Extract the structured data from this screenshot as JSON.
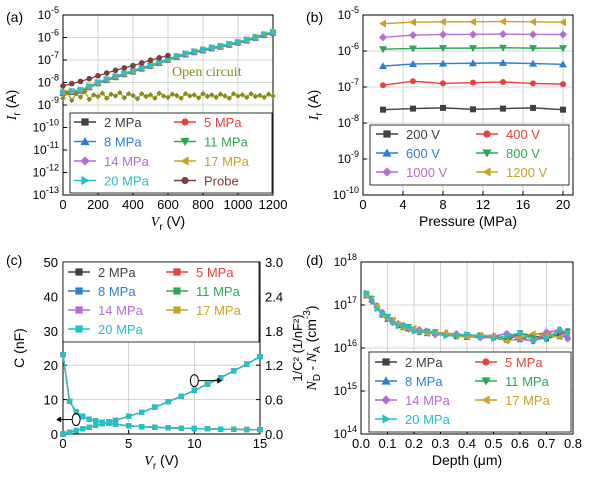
{
  "chart_data": [
    {
      "panel": "(a)",
      "type": "scatter",
      "xlabel": "V",
      "xlabel_sub": "r",
      "xunit": "(V)",
      "ylabel": "I",
      "ylabel_sub": "r",
      "yunit": "(A)",
      "xlim": [
        0,
        1200
      ],
      "xticks": [
        0,
        200,
        400,
        600,
        800,
        1000,
        1200
      ],
      "ylim": [
        -13,
        -5
      ],
      "yscale": "log",
      "ytick_exponents": [
        -13,
        -12,
        -11,
        -10,
        -9,
        -8,
        -7,
        -6,
        -5
      ],
      "grid": true,
      "annotation": "Open circuit",
      "legend": [
        {
          "name": "2 MPa",
          "color": "#404040",
          "marker": "square"
        },
        {
          "name": "5 MPa",
          "color": "#e8413c",
          "marker": "circle"
        },
        {
          "name": "8 MPa",
          "color": "#2a7fd4",
          "marker": "triangle-up"
        },
        {
          "name": "11 MPa",
          "color": "#2aa856",
          "marker": "triangle-down"
        },
        {
          "name": "14 MPa",
          "color": "#b86ad9",
          "marker": "diamond"
        },
        {
          "name": "17 MPa",
          "color": "#c9a227",
          "marker": "triangle-left"
        },
        {
          "name": "20 MPa",
          "color": "#1fc3c9",
          "marker": "triangle-right"
        },
        {
          "name": "Probe",
          "color": "#7a3e3e",
          "marker": "circle"
        }
      ],
      "series": [
        {
          "name": "2 MPa",
          "x": [
            0,
            50,
            100,
            150,
            200,
            250,
            300,
            350,
            400,
            450,
            500,
            550,
            600,
            650,
            700,
            750,
            800,
            850,
            900,
            950,
            1000,
            1050,
            1100,
            1150,
            1200
          ],
          "log10_y": [
            -8.46,
            -8.41,
            -8.35,
            -8.2,
            -8.02,
            -7.88,
            -7.75,
            -7.62,
            -7.5,
            -7.37,
            -7.25,
            -7.12,
            -6.98,
            -6.85,
            -6.74,
            -6.64,
            -6.56,
            -6.47,
            -6.4,
            -6.31,
            -6.22,
            -6.12,
            -6.0,
            -5.88,
            -5.78
          ]
        },
        {
          "name": "Probe",
          "x": [
            0,
            50,
            100,
            150,
            200,
            250,
            300,
            350,
            400,
            450,
            500,
            550,
            600
          ],
          "log10_y": [
            -8.15,
            -8.05,
            -7.95,
            -7.83,
            -7.7,
            -7.58,
            -7.46,
            -7.35,
            -7.25,
            -7.13,
            -7.01,
            -6.9,
            -6.8
          ]
        },
        {
          "name": "Open circuit",
          "x": [
            0,
            25,
            50,
            75,
            100,
            125,
            150,
            175,
            200,
            225,
            250,
            275,
            300,
            325,
            350,
            375,
            400,
            425,
            450,
            475,
            500,
            525,
            550,
            575,
            600,
            625,
            650,
            675,
            700,
            725,
            750,
            775,
            800,
            825,
            850,
            875,
            900,
            925,
            950,
            975,
            1000,
            1025,
            1050,
            1075,
            1100,
            1125,
            1150,
            1175,
            1200
          ],
          "log10_y": [
            -8.7,
            -8.45,
            -8.8,
            -8.5,
            -8.65,
            -8.4,
            -8.75,
            -8.55,
            -8.62,
            -8.48,
            -8.7,
            -8.52,
            -8.6,
            -8.45,
            -8.68,
            -8.5,
            -8.58,
            -8.72,
            -8.5,
            -8.62,
            -8.55,
            -8.7,
            -8.48,
            -8.6,
            -8.66,
            -8.52,
            -8.58,
            -8.7,
            -8.5,
            -8.6,
            -8.55,
            -8.68,
            -8.5,
            -8.62,
            -8.55,
            -8.66,
            -8.52,
            -8.6,
            -8.7,
            -8.5,
            -8.6,
            -8.55,
            -8.66,
            -8.5,
            -8.62,
            -8.57,
            -8.66,
            -8.52,
            -8.6
          ]
        }
      ]
    },
    {
      "panel": "(b)",
      "type": "line",
      "xlabel": "Pressure (MPa)",
      "ylabel": "I",
      "ylabel_sub": "r",
      "yunit": "(A)",
      "xlim": [
        0,
        21
      ],
      "xticks": [
        0,
        4,
        8,
        12,
        16,
        20
      ],
      "ylim": [
        -10,
        -5
      ],
      "yscale": "log",
      "ytick_exponents": [
        -10,
        -9,
        -8,
        -7,
        -6,
        -5
      ],
      "grid": true,
      "x": [
        2,
        5,
        8,
        11,
        14,
        17,
        20
      ],
      "legend": [
        {
          "name": "200 V",
          "color": "#404040",
          "marker": "square"
        },
        {
          "name": "400 V",
          "color": "#e8413c",
          "marker": "circle"
        },
        {
          "name": "600 V",
          "color": "#2a7fd4",
          "marker": "triangle-up"
        },
        {
          "name": "800 V",
          "color": "#2aa856",
          "marker": "triangle-down"
        },
        {
          "name": "1000 V",
          "color": "#b86ad9",
          "marker": "diamond"
        },
        {
          "name": "1200 V",
          "color": "#c9a227",
          "marker": "triangle-left"
        }
      ],
      "series": [
        {
          "name": "200 V",
          "log10_y": [
            -7.63,
            -7.6,
            -7.58,
            -7.62,
            -7.6,
            -7.58,
            -7.63
          ]
        },
        {
          "name": "400 V",
          "log10_y": [
            -6.95,
            -6.84,
            -6.9,
            -6.88,
            -6.86,
            -6.9,
            -6.92
          ]
        },
        {
          "name": "600 V",
          "log10_y": [
            -6.42,
            -6.36,
            -6.35,
            -6.34,
            -6.33,
            -6.35,
            -6.37
          ]
        },
        {
          "name": "800 V",
          "log10_y": [
            -5.95,
            -5.93,
            -5.92,
            -5.92,
            -5.91,
            -5.92,
            -5.92
          ]
        },
        {
          "name": "1000 V",
          "log10_y": [
            -5.62,
            -5.56,
            -5.54,
            -5.54,
            -5.53,
            -5.54,
            -5.54
          ]
        },
        {
          "name": "1200 V",
          "log10_y": [
            -5.24,
            -5.2,
            -5.19,
            -5.19,
            -5.18,
            -5.19,
            -5.2
          ]
        }
      ]
    },
    {
      "panel": "(c)",
      "type": "scatter",
      "xlabel": "V",
      "xlabel_sub": "r",
      "xunit": "(V)",
      "ylabel": "C (nF)",
      "y2label": "1/C² (1/nF²)",
      "xlim": [
        0,
        15
      ],
      "xticks": [
        0,
        5,
        10,
        15
      ],
      "ylim": [
        0,
        50
      ],
      "yticks": [
        0,
        10,
        20,
        30,
        40,
        50
      ],
      "y2lim": [
        0,
        3.0
      ],
      "y2ticks": [
        "0.0",
        "0.6",
        "1.2",
        "1.8",
        "2.4",
        "3.0"
      ],
      "grid": true,
      "legend": [
        {
          "name": "2 MPa",
          "color": "#404040",
          "marker": "square"
        },
        {
          "name": "5 MPa",
          "color": "#e8413c",
          "marker": "square"
        },
        {
          "name": "8 MPa",
          "color": "#2a7fd4",
          "marker": "square"
        },
        {
          "name": "11 MPa",
          "color": "#2aa856",
          "marker": "square"
        },
        {
          "name": "14 MPa",
          "color": "#b86ad9",
          "marker": "square"
        },
        {
          "name": "17 MPa",
          "color": "#c9a227",
          "marker": "square"
        },
        {
          "name": "20 MPa",
          "color": "#1fc3c9",
          "marker": "square"
        }
      ],
      "capacitance": {
        "x": [
          0,
          0.5,
          1,
          1.5,
          2,
          2.5,
          3,
          3.5,
          4,
          5,
          6,
          7,
          8,
          9,
          10,
          11,
          12,
          13,
          14,
          15
        ],
        "y": [
          23,
          9.5,
          6.4,
          5.1,
          4.3,
          3.8,
          3.4,
          3.1,
          2.8,
          2.4,
          2.15,
          1.95,
          1.8,
          1.7,
          1.6,
          1.5,
          1.42,
          1.35,
          1.3,
          1.25
        ]
      },
      "inverse_c2": {
        "x": [
          0,
          0.5,
          1,
          1.5,
          2,
          2.5,
          3,
          3.5,
          4,
          5,
          6,
          7,
          8,
          9,
          10,
          11,
          12,
          13,
          14,
          15
        ],
        "y": [
          0.0,
          0.03,
          0.06,
          0.09,
          0.12,
          0.15,
          0.18,
          0.21,
          0.24,
          0.31,
          0.38,
          0.47,
          0.56,
          0.66,
          0.76,
          0.87,
          0.98,
          1.1,
          1.22,
          1.35
        ]
      },
      "markers": [
        {
          "x": 1,
          "y": 4.2,
          "arrow": "left"
        },
        {
          "x": 10,
          "y": 15.5,
          "arrow": "right"
        }
      ]
    },
    {
      "panel": "(d)",
      "type": "line",
      "xlabel": "Depth (μm)",
      "ylabel": "N",
      "ylabel_parts": [
        "N",
        "D",
        " - N",
        "A",
        " (cm",
        "-3",
        ")"
      ],
      "xlim": [
        0,
        0.8
      ],
      "xticks": [
        "0.0",
        "0.1",
        "0.2",
        "0.3",
        "0.4",
        "0.5",
        "0.6",
        "0.7",
        "0.8"
      ],
      "ylim": [
        14,
        18
      ],
      "yscale": "log",
      "ytick_exponents": [
        14,
        15,
        16,
        17,
        18
      ],
      "grid": true,
      "legend": [
        {
          "name": "2 MPa",
          "color": "#404040",
          "marker": "square"
        },
        {
          "name": "5 MPa",
          "color": "#e8413c",
          "marker": "circle"
        },
        {
          "name": "8 MPa",
          "color": "#2a7fd4",
          "marker": "triangle-up"
        },
        {
          "name": "11 MPa",
          "color": "#2aa856",
          "marker": "triangle-down"
        },
        {
          "name": "14 MPa",
          "color": "#b86ad9",
          "marker": "diamond"
        },
        {
          "name": "17 MPa",
          "color": "#c9a227",
          "marker": "triangle-left"
        },
        {
          "name": "20 MPa",
          "color": "#1fc3c9",
          "marker": "triangle-right"
        }
      ],
      "profile": {
        "x": [
          0.02,
          0.04,
          0.06,
          0.08,
          0.1,
          0.12,
          0.14,
          0.16,
          0.18,
          0.2,
          0.22,
          0.25,
          0.28,
          0.32,
          0.36,
          0.4,
          0.45,
          0.5,
          0.55,
          0.6,
          0.65,
          0.7,
          0.75,
          0.78
        ],
        "log10_y": [
          17.25,
          17.12,
          16.95,
          16.8,
          16.7,
          16.62,
          16.55,
          16.5,
          16.46,
          16.42,
          16.4,
          16.37,
          16.34,
          16.32,
          16.3,
          16.28,
          16.27,
          16.26,
          16.25,
          16.26,
          16.24,
          16.3,
          16.35,
          16.3
        ]
      }
    }
  ]
}
